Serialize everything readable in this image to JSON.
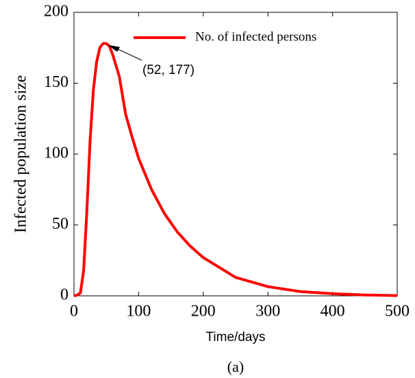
{
  "chart_data": {
    "type": "line",
    "x_label": "Time/days",
    "y_label": "Infected population size",
    "caption": "(a)",
    "xlim": [
      0,
      500
    ],
    "ylim": [
      0,
      200
    ],
    "xticks": [
      0,
      100,
      200,
      300,
      400,
      500
    ],
    "yticks": [
      0,
      50,
      100,
      150,
      200
    ],
    "legend_position": "upper right",
    "x": [
      0,
      5,
      10,
      15,
      20,
      25,
      30,
      35,
      40,
      45,
      50,
      55,
      60,
      70,
      80,
      90,
      100,
      120,
      140,
      160,
      180,
      200,
      250,
      300,
      350,
      400,
      450,
      500
    ],
    "series": [
      {
        "name": "No. of infected persons",
        "color": "#ff0000",
        "values": [
          0,
          0.5,
          2,
          18,
          60,
          110,
          145,
          165,
          175,
          178,
          178,
          176,
          170,
          155,
          128,
          112,
          97,
          75,
          58,
          45,
          35,
          27,
          13,
          6.5,
          3,
          1.5,
          0.6,
          0.2
        ]
      }
    ],
    "annotation": {
      "text": "(52, 177)",
      "x": 52,
      "y": 177
    }
  }
}
